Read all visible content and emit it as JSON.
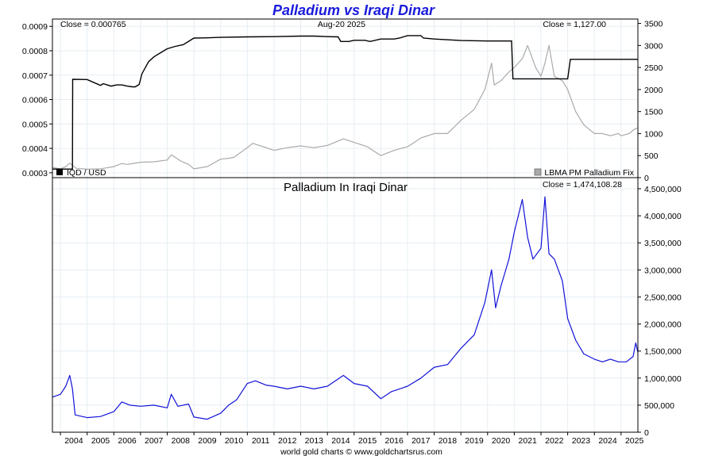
{
  "chart_data": [
    {
      "type": "line",
      "title": "Palladium vs Iraqi Dinar",
      "date": "Aug-20  2025",
      "left_close": "Close = 0.000765",
      "right_close": "Close = 1,127.00",
      "left_axis": {
        "ylim": [
          0.00028,
          0.00093
        ],
        "ticks": [
          "0.0003",
          "0.0004",
          "0.0005",
          "0.0006",
          "0.0007",
          "0.0008",
          "0.0009"
        ]
      },
      "right_axis": {
        "ylim": [
          0,
          3600
        ],
        "ticks": [
          "0",
          "500",
          "1000",
          "1500",
          "2000",
          "2500",
          "3000",
          "3500"
        ]
      },
      "legend": {
        "left": "IQD / USD",
        "right": "LBMA PM Palladium Fix",
        "placement": "bottom"
      },
      "colors": {
        "iqd": "#000000",
        "palladium": "#aaaaaa"
      },
      "series": [
        {
          "name": "IQD / USD",
          "axis": "left",
          "x": [
            2003.7,
            2004.45,
            2004.46,
            2005.0,
            2005.5,
            2005.6,
            2005.9,
            2006.1,
            2006.3,
            2006.5,
            2006.7,
            2006.8,
            2006.95,
            2007.05,
            2007.3,
            2007.5,
            2007.8,
            2008.0,
            2008.3,
            2008.6,
            2009.0,
            2009.5,
            2010.0,
            2011.0,
            2012.0,
            2013.0,
            2013.5,
            2014.0,
            2014.4,
            2014.5,
            2014.8,
            2015.0,
            2015.4,
            2015.6,
            2016.0,
            2016.5,
            2016.7,
            2017.0,
            2017.5,
            2017.6,
            2018.0,
            2019.0,
            2020.0,
            2020.9,
            2020.95,
            2021.5,
            2022.0,
            2022.4,
            2022.5,
            2022.8,
            2023.0,
            2023.1,
            2024.0,
            2025.0,
            2025.63
          ],
          "y": [
            0.000315,
            0.000315,
            0.000683,
            0.000682,
            0.000658,
            0.000665,
            0.000655,
            0.00066,
            0.00066,
            0.000655,
            0.000652,
            0.000652,
            0.000662,
            0.000705,
            0.000755,
            0.000775,
            0.000795,
            0.000808,
            0.000818,
            0.000825,
            0.000852,
            0.000853,
            0.000855,
            0.000857,
            0.000858,
            0.00086,
            0.00086,
            0.000858,
            0.000857,
            0.000838,
            0.000838,
            0.000843,
            0.000843,
            0.000838,
            0.000848,
            0.000848,
            0.000852,
            0.000862,
            0.000862,
            0.000852,
            0.000848,
            0.000842,
            0.00084,
            0.00084,
            0.000685,
            0.000685,
            0.000685,
            0.000685,
            0.000685,
            0.000685,
            0.000685,
            0.000765,
            0.000765,
            0.000765,
            0.000765
          ]
        },
        {
          "name": "LBMA PM Palladium Fix",
          "axis": "right",
          "x": [
            2003.7,
            2004.0,
            2004.2,
            2004.35,
            2004.6,
            2005.0,
            2005.5,
            2006.0,
            2006.3,
            2006.5,
            2007.0,
            2007.5,
            2008.0,
            2008.15,
            2008.5,
            2008.8,
            2009.0,
            2009.5,
            2010.0,
            2010.3,
            2010.5,
            2011.0,
            2011.2,
            2011.6,
            2012.0,
            2012.5,
            2013.0,
            2013.5,
            2014.0,
            2014.6,
            2015.0,
            2015.5,
            2016.0,
            2016.5,
            2017.0,
            2017.5,
            2018.0,
            2018.5,
            2019.0,
            2019.5,
            2019.9,
            2020.15,
            2020.25,
            2020.5,
            2020.8,
            2021.0,
            2021.3,
            2021.5,
            2021.8,
            2022.0,
            2022.15,
            2022.3,
            2022.5,
            2022.8,
            2023.0,
            2023.3,
            2023.6,
            2023.8,
            2024.0,
            2024.3,
            2024.6,
            2024.9,
            2025.0,
            2025.3,
            2025.5,
            2025.63
          ],
          "y": [
            230,
            200,
            250,
            330,
            210,
            190,
            200,
            250,
            320,
            300,
            350,
            360,
            400,
            520,
            380,
            300,
            200,
            250,
            420,
            440,
            460,
            680,
            780,
            700,
            620,
            680,
            720,
            680,
            730,
            880,
            800,
            700,
            500,
            620,
            700,
            900,
            1000,
            1000,
            1300,
            1550,
            2000,
            2600,
            2100,
            2200,
            2400,
            2500,
            2700,
            3000,
            2500,
            2300,
            2600,
            3000,
            2300,
            2200,
            2000,
            1500,
            1200,
            1100,
            1000,
            1000,
            950,
            1000,
            950,
            1000,
            1100,
            1127
          ]
        }
      ]
    },
    {
      "type": "line",
      "title": "Palladium In Iraqi Dinar",
      "close": "Close = 1,474,108.28",
      "ylim": [
        0,
        4500000
      ],
      "yticks": [
        "0",
        "500,000",
        "1,000,000",
        "1,500,000",
        "2,000,000",
        "2,500,000",
        "3,000,000",
        "3,500,000",
        "4,000,000",
        "4,500,000"
      ],
      "xticks": [
        "2004",
        "2005",
        "2006",
        "2007",
        "2008",
        "2009",
        "2010",
        "2011",
        "2012",
        "2013",
        "2014",
        "2015",
        "2016",
        "2017",
        "2018",
        "2019",
        "2020",
        "2021",
        "2022",
        "2023",
        "2024",
        "2025"
      ],
      "colors": {
        "line": "#1212d8"
      },
      "series": [
        {
          "name": "Palladium In Iraqi Dinar",
          "x": [
            2003.7,
            2004.0,
            2004.2,
            2004.35,
            2004.45,
            2004.55,
            2005.0,
            2005.5,
            2006.0,
            2006.3,
            2006.6,
            2007.0,
            2007.5,
            2008.0,
            2008.15,
            2008.4,
            2008.8,
            2009.0,
            2009.5,
            2010.0,
            2010.3,
            2010.6,
            2011.0,
            2011.3,
            2011.7,
            2012.0,
            2012.5,
            2013.0,
            2013.5,
            2014.0,
            2014.6,
            2015.0,
            2015.5,
            2016.0,
            2016.4,
            2017.0,
            2017.5,
            2018.0,
            2018.5,
            2019.0,
            2019.5,
            2019.9,
            2020.15,
            2020.3,
            2020.5,
            2020.8,
            2021.0,
            2021.3,
            2021.5,
            2021.7,
            2022.0,
            2022.15,
            2022.3,
            2022.5,
            2022.8,
            2023.0,
            2023.3,
            2023.6,
            2023.8,
            2024.0,
            2024.3,
            2024.6,
            2024.9,
            2025.2,
            2025.45,
            2025.55,
            2025.63
          ],
          "y": [
            650000,
            700000,
            850000,
            1050000,
            800000,
            320000,
            270000,
            290000,
            380000,
            560000,
            500000,
            480000,
            500000,
            450000,
            700000,
            480000,
            520000,
            280000,
            240000,
            350000,
            500000,
            600000,
            900000,
            950000,
            870000,
            850000,
            800000,
            850000,
            800000,
            850000,
            1050000,
            900000,
            850000,
            620000,
            750000,
            850000,
            1000000,
            1200000,
            1250000,
            1550000,
            1800000,
            2400000,
            3000000,
            2300000,
            2700000,
            3200000,
            3700000,
            4300000,
            3600000,
            3200000,
            3400000,
            4350000,
            3300000,
            3200000,
            2800000,
            2100000,
            1700000,
            1450000,
            1400000,
            1350000,
            1300000,
            1350000,
            1300000,
            1300000,
            1400000,
            1650000,
            1474108
          ]
        }
      ]
    }
  ],
  "footer": "world gold charts © www.goldchartsrus.com"
}
